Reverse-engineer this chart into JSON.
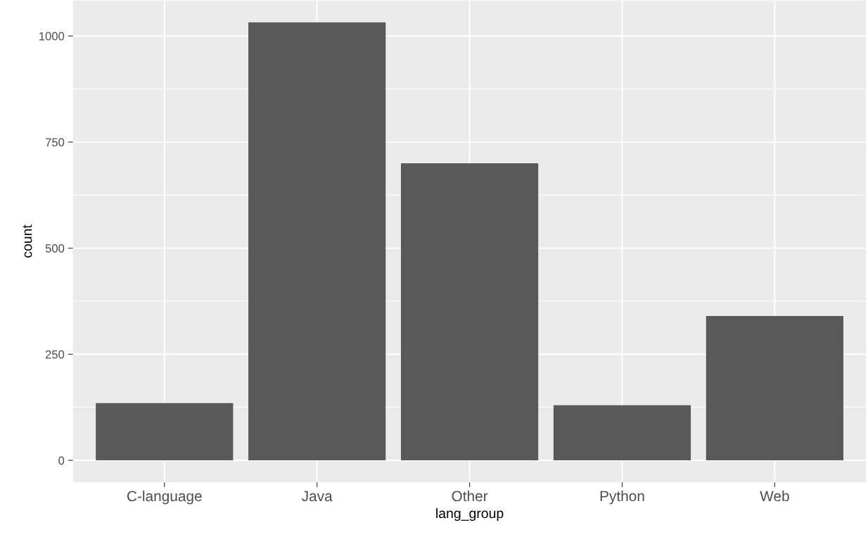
{
  "chart_data": {
    "type": "bar",
    "xlabel": "lang_group",
    "ylabel": "count",
    "categories": [
      "C-language",
      "Java",
      "Other",
      "Python",
      "Web"
    ],
    "values": [
      135,
      1032,
      700,
      130,
      340
    ],
    "color": "#595959",
    "ylim": [
      -51.6,
      1083.6
    ],
    "yticks": [
      0,
      {
        "value": 125,
        "label": null
      },
      250,
      {
        "value": 375,
        "label": null
      },
      500,
      {
        "value": 625,
        "label": null
      },
      750,
      {
        "value": 875,
        "label": null
      },
      1000
    ],
    "grid": true
  }
}
